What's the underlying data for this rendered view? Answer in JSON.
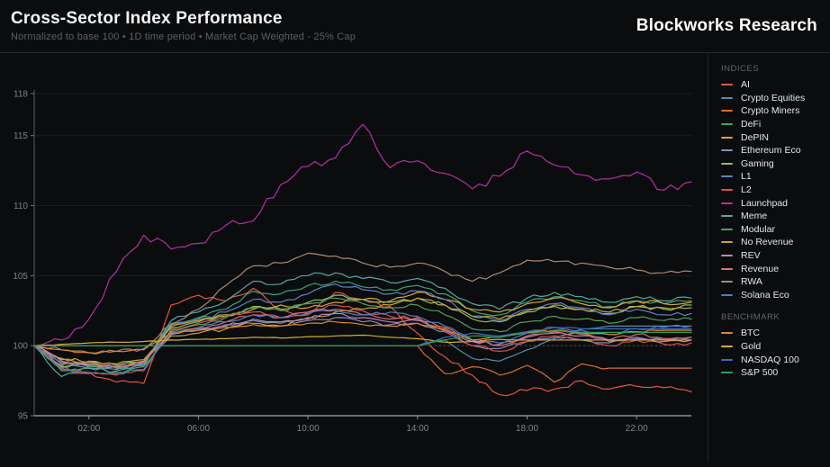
{
  "header": {
    "title": "Cross-Sector Index Performance",
    "subtitle": "Normalized to base 100 • 1D time period • Market Cap Weighted - 25% Cap",
    "brand": "Blockworks Research"
  },
  "legend": {
    "sections": [
      {
        "id": "indices",
        "label": "INDICES"
      },
      {
        "id": "benchmark",
        "label": "BENCHMARK"
      }
    ]
  },
  "chart_data": {
    "type": "line",
    "x_tick_labels": [
      "02:00",
      "06:00",
      "10:00",
      "14:00",
      "18:00",
      "22:00"
    ],
    "x_tick_hours": [
      2,
      6,
      10,
      14,
      18,
      22
    ],
    "x_range_hours": [
      0,
      24
    ],
    "sample_interval_hours": 1,
    "y_ticks": [
      95,
      100,
      105,
      110,
      115,
      118
    ],
    "ylim": [
      95,
      118
    ],
    "baseline": 100,
    "grid": true,
    "legend_position": "right",
    "series": [
      {
        "name": "AI",
        "group": "indices",
        "color": "#e25545",
        "jitter": 0.18,
        "values": [
          100,
          98.6,
          98.1,
          97.4,
          97.3,
          102.9,
          103.6,
          103.2,
          104.1,
          102.6,
          102.2,
          103.8,
          103.3,
          102.8,
          100.9,
          99.2,
          97.9,
          96.5,
          96.8,
          96.9,
          97.5,
          96.9,
          97.1,
          97.0,
          96.7
        ]
      },
      {
        "name": "Crypto Equities",
        "group": "indices",
        "color": "#5290a8",
        "jitter": 0.07,
        "values": [
          100,
          100,
          100,
          100,
          100,
          100,
          100,
          100,
          100,
          100,
          100,
          100,
          100,
          100,
          100,
          100.4,
          99.1,
          98.9,
          99.7,
          100.5,
          101.2,
          101.4,
          101.4,
          101.4,
          101.4
        ]
      },
      {
        "name": "Crypto Miners",
        "group": "indices",
        "color": "#e06c2e",
        "jitter": 0.14,
        "values": [
          100,
          100,
          100,
          100,
          100,
          100,
          100,
          100,
          100,
          100,
          100,
          100,
          100,
          100,
          100,
          98.0,
          98.5,
          97.9,
          98.6,
          97.4,
          98.7,
          98.4,
          98.4,
          98.4,
          98.4
        ]
      },
      {
        "name": "DeFi",
        "group": "indices",
        "color": "#3fa374",
        "jitter": 0.15,
        "values": [
          100,
          98.4,
          98.7,
          98.4,
          98.7,
          101.6,
          102.0,
          102.6,
          103.9,
          103.7,
          104.3,
          104.6,
          104.2,
          104.0,
          104.3,
          103.7,
          102.5,
          102.2,
          103.1,
          103.5,
          103.2,
          102.8,
          103.2,
          103.0,
          103.2
        ]
      },
      {
        "name": "DePIN",
        "group": "indices",
        "color": "#d9a62e",
        "jitter": 0.15,
        "values": [
          100,
          99.0,
          98.6,
          98.5,
          98.8,
          101.4,
          101.8,
          102.2,
          102.6,
          102.9,
          102.7,
          103.1,
          103.3,
          103.2,
          103.8,
          103.3,
          102.6,
          102.4,
          103.0,
          103.4,
          103.0,
          102.7,
          103.2,
          103.0,
          103.1
        ]
      },
      {
        "name": "Ethereum Eco",
        "group": "indices",
        "color": "#7e93b5",
        "jitter": 0.12,
        "values": [
          100,
          98.8,
          98.4,
          98.3,
          98.6,
          100.9,
          101.2,
          101.5,
          101.8,
          101.6,
          101.8,
          102.0,
          101.7,
          101.5,
          101.6,
          101.0,
          100.0,
          99.8,
          100.3,
          100.6,
          100.4,
          100.2,
          100.5,
          100.4,
          100.6
        ]
      },
      {
        "name": "Gaming",
        "group": "indices",
        "color": "#8fbf61",
        "jitter": 0.13,
        "values": [
          100,
          98.5,
          98.9,
          98.6,
          98.9,
          101.3,
          101.7,
          102.1,
          102.8,
          102.6,
          103.1,
          103.6,
          103.3,
          103.1,
          103.4,
          102.9,
          101.9,
          101.7,
          102.4,
          102.8,
          102.6,
          102.3,
          102.8,
          102.7,
          102.9
        ]
      },
      {
        "name": "L1",
        "group": "indices",
        "color": "#5d83c4",
        "jitter": 0.14,
        "values": [
          100,
          98.7,
          98.5,
          98.4,
          98.7,
          101.5,
          101.9,
          102.4,
          103.3,
          103.1,
          103.7,
          104.4,
          104.0,
          103.7,
          103.9,
          103.3,
          102.1,
          101.8,
          102.6,
          103.0,
          102.7,
          102.2,
          102.6,
          102.2,
          102.3
        ]
      },
      {
        "name": "L2",
        "group": "indices",
        "color": "#d94f4f",
        "jitter": 0.15,
        "values": [
          100,
          98.3,
          98.0,
          97.9,
          98.2,
          101.2,
          101.6,
          102.1,
          102.4,
          102.0,
          102.4,
          102.9,
          102.5,
          102.1,
          101.9,
          101.0,
          100.0,
          99.6,
          100.3,
          100.7,
          100.4,
          100.0,
          100.4,
          100.1,
          100.2
        ]
      },
      {
        "name": "Launchpad",
        "group": "indices",
        "color": "#b5309f",
        "jitter": 0.3,
        "values": [
          100,
          100.4,
          101.9,
          105.3,
          107.9,
          106.9,
          107.3,
          108.6,
          108.9,
          111.5,
          112.8,
          113.4,
          115.8,
          112.7,
          113.2,
          112.3,
          111.2,
          112.1,
          113.9,
          112.9,
          112.2,
          111.9,
          112.4,
          111.1,
          111.7
        ]
      },
      {
        "name": "Meme",
        "group": "indices",
        "color": "#55a8a0",
        "jitter": 0.16,
        "values": [
          100,
          97.8,
          98.4,
          98.2,
          98.6,
          101.8,
          102.4,
          103.2,
          104.6,
          104.4,
          105.0,
          105.2,
          104.8,
          104.5,
          104.8,
          104.1,
          103.0,
          102.6,
          103.4,
          103.8,
          103.5,
          103.1,
          103.5,
          103.2,
          103.4
        ]
      },
      {
        "name": "Modular",
        "group": "indices",
        "color": "#55a05c",
        "jitter": 0.13,
        "values": [
          100,
          98.2,
          98.5,
          98.1,
          98.5,
          101.1,
          101.5,
          102.0,
          102.7,
          102.5,
          103.0,
          103.4,
          103.0,
          102.7,
          102.9,
          102.2,
          101.2,
          101.0,
          101.7,
          102.1,
          101.9,
          101.6,
          102.0,
          101.8,
          101.9
        ]
      },
      {
        "name": "No Revenue",
        "group": "indices",
        "color": "#c2a839",
        "jitter": 0.13,
        "values": [
          100,
          99.1,
          98.8,
          98.7,
          99.0,
          100.7,
          100.9,
          101.2,
          101.6,
          101.4,
          101.9,
          102.4,
          102.6,
          102.9,
          103.4,
          102.9,
          102.1,
          101.9,
          102.5,
          102.9,
          102.6,
          102.4,
          102.8,
          102.6,
          102.7
        ]
      },
      {
        "name": "REV",
        "group": "indices",
        "color": "#bb85bb",
        "jitter": 0.12,
        "values": [
          100,
          98.9,
          98.6,
          98.5,
          98.8,
          100.8,
          101.1,
          101.4,
          101.9,
          101.7,
          102.0,
          102.3,
          102.0,
          101.7,
          101.8,
          101.1,
          100.3,
          100.1,
          100.6,
          100.9,
          100.7,
          100.3,
          100.6,
          100.3,
          100.4
        ]
      },
      {
        "name": "Revenue",
        "group": "indices",
        "color": "#db7070",
        "jitter": 0.13,
        "values": [
          100,
          98.6,
          98.9,
          98.4,
          98.8,
          101.0,
          101.3,
          101.7,
          102.2,
          102.0,
          102.4,
          102.6,
          102.2,
          101.9,
          102.0,
          101.3,
          100.4,
          100.0,
          100.7,
          101.0,
          100.8,
          100.4,
          100.8,
          100.5,
          100.6
        ]
      },
      {
        "name": "RWA",
        "group": "indices",
        "color": "#a98a70",
        "jitter": 0.15,
        "values": [
          100,
          99.7,
          99.5,
          99.6,
          99.8,
          101.5,
          102.6,
          104.3,
          105.7,
          105.9,
          106.6,
          106.4,
          105.9,
          105.6,
          105.9,
          105.3,
          104.6,
          105.2,
          106.1,
          106.0,
          105.9,
          105.6,
          105.4,
          105.2,
          105.3
        ]
      },
      {
        "name": "Solana Eco",
        "group": "indices",
        "color": "#4a7fc2",
        "jitter": 0.12,
        "values": [
          100,
          98.4,
          98.1,
          98.0,
          98.3,
          100.9,
          101.3,
          101.7,
          102.2,
          102.0,
          102.3,
          102.5,
          102.2,
          102.4,
          102.1,
          101.4,
          100.4,
          100.2,
          100.9,
          101.3,
          101.1,
          100.8,
          101.2,
          101.3,
          101.4
        ]
      },
      {
        "name": "BTC",
        "group": "benchmark",
        "color": "#e0862b",
        "jitter": 0.08,
        "values": [
          100,
          99.7,
          99.5,
          99.6,
          99.7,
          100.9,
          101.1,
          101.3,
          101.5,
          101.4,
          101.6,
          101.7,
          101.5,
          101.4,
          101.6,
          101.2,
          100.4,
          100.6,
          101.0,
          101.1,
          100.9,
          100.8,
          101.0,
          101.1,
          101.1
        ]
      },
      {
        "name": "Gold",
        "group": "benchmark",
        "color": "#cfae35",
        "jitter": 0.03,
        "values": [
          100,
          100.1,
          100.2,
          100.25,
          100.3,
          100.4,
          100.45,
          100.5,
          100.6,
          100.55,
          100.65,
          100.7,
          100.75,
          100.6,
          100.5,
          100.25,
          100.3,
          100.45,
          100.4,
          100.4,
          100.4,
          100.4,
          100.4,
          100.4,
          100.4
        ]
      },
      {
        "name": "NASDAQ 100",
        "group": "benchmark",
        "color": "#3a6fc4",
        "jitter": 0.05,
        "values": [
          100,
          100,
          100,
          100,
          100,
          100,
          100,
          100,
          100,
          100,
          100,
          100,
          100,
          100,
          100,
          100.6,
          100.9,
          100.7,
          101.0,
          101.3,
          101.2,
          101.2,
          101.2,
          101.2,
          101.2
        ]
      },
      {
        "name": "S&P 500",
        "group": "benchmark",
        "color": "#27a25a",
        "jitter": 0.04,
        "values": [
          100,
          100,
          100,
          100,
          100,
          100,
          100,
          100,
          100,
          100,
          100,
          100,
          100,
          100,
          100,
          100.4,
          100.7,
          100.6,
          100.9,
          101.05,
          100.95,
          100.95,
          100.95,
          100.95,
          100.95
        ]
      }
    ]
  }
}
